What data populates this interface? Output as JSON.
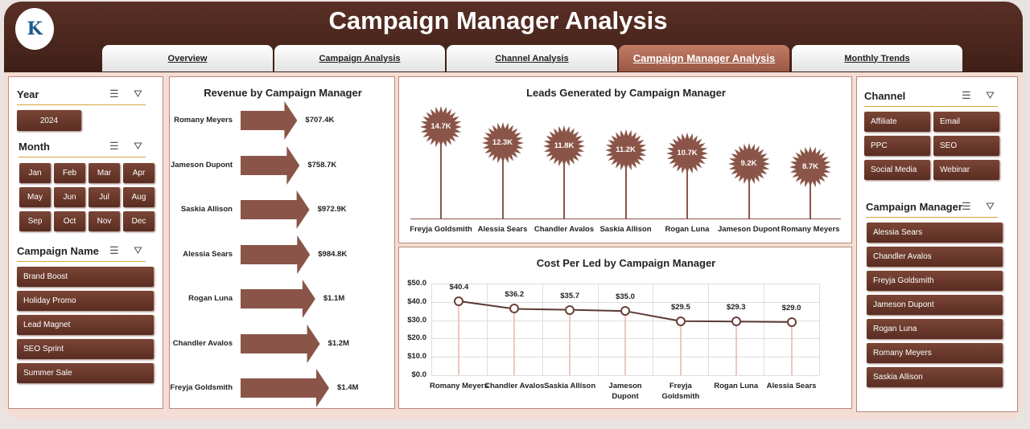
{
  "header": {
    "title": "Campaign Manager Analysis",
    "logo_text": "K"
  },
  "tabs": [
    {
      "label": "Overview"
    },
    {
      "label": "Campaign Analysis"
    },
    {
      "label": "Channel Analysis"
    },
    {
      "label": "Campaign Manager Analysis",
      "active": true
    },
    {
      "label": "Monthly Trends"
    }
  ],
  "filters": {
    "year": {
      "title": "Year",
      "items": [
        "2024"
      ]
    },
    "month": {
      "title": "Month",
      "items": [
        "Jan",
        "Feb",
        "Mar",
        "Apr",
        "May",
        "Jun",
        "Jul",
        "Aug",
        "Sep",
        "Oct",
        "Nov",
        "Dec"
      ]
    },
    "campaign": {
      "title": "Campaign Name",
      "items": [
        "Brand Boost",
        "Holiday Promo",
        "Lead Magnet",
        "SEO Sprint",
        "Summer Sale"
      ]
    },
    "channel": {
      "title": "Channel",
      "items": [
        "Affiliate",
        "Email",
        "PPC",
        "SEO",
        "Social Media",
        "Webinar"
      ]
    },
    "manager": {
      "title": "Campaign Manager",
      "items": [
        "Alessia Sears",
        "Chandler Avalos",
        "Freyja Goldsmith",
        "Jameson Dupont",
        "Rogan Luna",
        "Romany Meyers",
        "Saskia Allison"
      ]
    }
  },
  "icons": {
    "multiselect": "multi-select-icon",
    "clear": "clear-filter-icon"
  },
  "chart_data": [
    {
      "type": "bar",
      "title": "Revenue by Campaign Manager",
      "categories": [
        "Romany Meyers",
        "Jameson Dupont",
        "Saskia Allison",
        "Alessia Sears",
        "Rogan Luna",
        "Chandler Avalos",
        "Freyja Goldsmith"
      ],
      "values": [
        707400,
        758700,
        972900,
        984800,
        1100000,
        1200000,
        1400000
      ],
      "labels": [
        "$707.4K",
        "$758.7K",
        "$972.9K",
        "$984.8K",
        "$1.1M",
        "$1.2M",
        "$1.4M"
      ]
    },
    {
      "type": "bar",
      "title": "Leads Generated by Campaign Manager",
      "categories": [
        "Freyja Goldsmith",
        "Alessia Sears",
        "Chandler Avalos",
        "Saskia Allison",
        "Rogan Luna",
        "Jameson Dupont",
        "Romany Meyers"
      ],
      "values": [
        14700,
        12300,
        11800,
        11200,
        10700,
        9200,
        8700
      ],
      "labels": [
        "14.7K",
        "12.3K",
        "11.8K",
        "11.2K",
        "10.7K",
        "9.2K",
        "8.7K"
      ]
    },
    {
      "type": "line",
      "title": "Cost Per Led by Campaign Manager",
      "categories": [
        "Romany Meyers",
        "Chandler Avalos",
        "Saskia Allison",
        "Jameson Dupont",
        "Freyja Goldsmith",
        "Rogan Luna",
        "Alessia Sears"
      ],
      "values": [
        40.4,
        36.2,
        35.7,
        35.0,
        29.5,
        29.3,
        29.0
      ],
      "labels": [
        "$40.4",
        "$36.2",
        "$35.7",
        "$35.0",
        "$29.5",
        "$29.3",
        "$29.0"
      ],
      "ylim": [
        0,
        50
      ],
      "yticks": [
        "$0.0",
        "$10.0",
        "$20.0",
        "$30.0",
        "$40.0",
        "$50.0"
      ]
    }
  ],
  "colors": {
    "brand": "#4a2820",
    "accent": "#b06a55",
    "bar": "#8a5548"
  }
}
